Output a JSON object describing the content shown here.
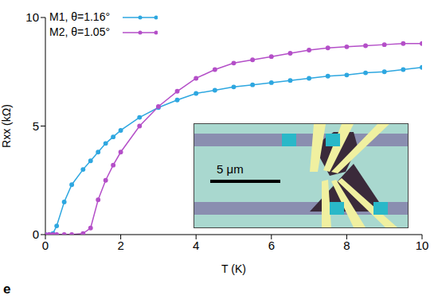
{
  "chart_data": {
    "type": "line",
    "x_label": "T (K)",
    "y_label": "Rxx (kΩ)",
    "annotations": [
      "5 μm",
      "e"
    ],
    "legend": "top-left",
    "grid": false,
    "xlim": [
      0,
      10
    ],
    "xticks": [
      0,
      2,
      4,
      6,
      8,
      10
    ],
    "ylim": [
      0,
      10
    ],
    "yticks": [
      0,
      5,
      10
    ],
    "x": [
      0,
      0.1,
      0.2,
      0.3,
      0.5,
      0.7,
      1.0,
      1.2,
      1.4,
      1.6,
      1.8,
      2.0,
      2.5,
      3.0,
      3.5,
      4.0,
      4.5,
      5,
      5.5,
      6,
      6.5,
      7,
      7.5,
      8,
      8.5,
      9,
      9.5,
      10
    ],
    "series": [
      {
        "name": "M1, θ=1.16°",
        "color": "#2ea7e0",
        "marker": "circle",
        "line_style": "solid",
        "values": [
          0,
          0,
          0.05,
          0.4,
          1.5,
          2.3,
          3.0,
          3.4,
          3.8,
          4.2,
          4.5,
          4.8,
          5.4,
          5.85,
          6.2,
          6.5,
          6.65,
          6.8,
          6.9,
          7.0,
          7.1,
          7.2,
          7.3,
          7.35,
          7.45,
          7.5,
          7.6,
          7.7
        ]
      },
      {
        "name": "M2, θ=1.05°",
        "color": "#b44fc8",
        "marker": "circle",
        "line_style": "solid",
        "values": [
          0,
          0,
          0,
          0,
          0,
          0,
          0.05,
          0.3,
          1.6,
          2.5,
          3.2,
          3.8,
          5.0,
          5.9,
          6.6,
          7.2,
          7.6,
          7.9,
          8.05,
          8.2,
          8.35,
          8.5,
          8.6,
          8.65,
          8.7,
          8.75,
          8.8,
          8.8
        ]
      }
    ]
  }
}
